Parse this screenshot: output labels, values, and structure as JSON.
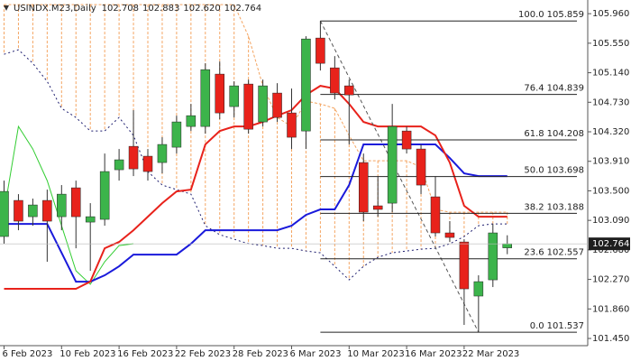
{
  "chart_data": {
    "type": "candlestick",
    "title": "USINDX.M23,Daily",
    "header_values": [
      "102.708",
      "102.883",
      "102.620",
      "102.764"
    ],
    "categories": [
      "6 Feb 2023",
      null,
      null,
      null,
      "10 Feb 2023",
      null,
      null,
      null,
      "16 Feb 2023",
      null,
      null,
      null,
      "22 Feb 2023",
      null,
      null,
      null,
      "28 Feb 2023",
      null,
      null,
      null,
      "6 Mar 2023",
      null,
      null,
      null,
      "10 Mar 2023",
      null,
      null,
      null,
      "16 Mar 2023",
      null,
      null,
      null,
      "22 Mar 2023",
      null,
      null,
      null
    ],
    "open": [
      102.866,
      103.367,
      103.141,
      103.367,
      103.141,
      103.542,
      103.066,
      103.104,
      103.793,
      104.118,
      103.981,
      103.893,
      104.106,
      104.394,
      104.394,
      105.121,
      104.67,
      104.983,
      104.457,
      104.858,
      104.582,
      104.331,
      105.622,
      105.208,
      104.958,
      103.893,
      103.292,
      103.329,
      104.331,
      104.081,
      103.417,
      102.916,
      102.79,
      102.039,
      102.264,
      102.708
    ],
    "high": [
      103.642,
      103.454,
      103.392,
      103.517,
      103.58,
      103.642,
      103.329,
      104.018,
      104.081,
      104.62,
      104.081,
      104.244,
      104.544,
      104.707,
      105.271,
      105.296,
      105.02,
      105.045,
      105.045,
      104.995,
      104.92,
      105.647,
      105.859,
      105.371,
      105.045,
      104.018,
      103.705,
      104.707,
      104.394,
      104.144,
      103.705,
      103.079,
      102.828,
      102.327,
      103.041,
      102.883
    ],
    "low": [
      102.765,
      102.953,
      103.016,
      102.515,
      102.953,
      102.702,
      102.39,
      103.016,
      103.642,
      103.705,
      103.642,
      103.743,
      104.018,
      104.331,
      104.294,
      104.494,
      104.519,
      104.294,
      104.394,
      104.457,
      104.081,
      104.081,
      105.171,
      104.77,
      104.144,
      103.079,
      103.141,
      103.204,
      104.018,
      103.454,
      102.866,
      102.79,
      101.638,
      101.537,
      102.164,
      102.62
    ],
    "close": [
      103.492,
      103.079,
      103.304,
      103.079,
      103.454,
      103.141,
      103.141,
      103.768,
      103.931,
      103.805,
      103.768,
      104.144,
      104.457,
      104.544,
      105.183,
      104.582,
      104.958,
      104.356,
      104.958,
      104.519,
      104.244,
      105.609,
      105.271,
      104.858,
      104.832,
      103.204,
      103.242,
      104.394,
      104.081,
      103.58,
      102.916,
      102.853,
      102.139,
      102.239,
      102.916,
      102.764
    ],
    "up_color": "#3cb44b",
    "down_color": "#e8221b",
    "series": [
      {
        "color": "#f4a460",
        "style": "cloud",
        "values": [
          106.085,
          106.085,
          106.085,
          106.085,
          106.085,
          106.085,
          106.085,
          106.085,
          106.085,
          106.085,
          106.085,
          106.085,
          106.085,
          106.085,
          106.085,
          106.085,
          106.085,
          105.647,
          104.958,
          104.519,
          104.394,
          104.745,
          104.707,
          104.645,
          104.269,
          103.918,
          103.918,
          103.918,
          103.918,
          103.83,
          103.242,
          103.204,
          103.204,
          103.204,
          103.204,
          103.204
        ]
      },
      {
        "color": "#1c1c6e",
        "style": "dashed",
        "values": [
          105.396,
          105.459,
          105.271,
          105.02,
          104.645,
          104.519,
          104.331,
          104.331,
          104.519,
          104.269,
          103.768,
          103.58,
          103.517,
          103.454,
          103.016,
          102.891,
          102.828,
          102.765,
          102.74,
          102.702,
          102.702,
          102.665,
          102.64,
          102.452,
          102.264,
          102.452,
          102.577,
          102.64,
          102.665,
          102.69,
          102.702,
          102.765,
          102.866,
          103.016,
          103.041,
          103.041
        ]
      },
      {
        "color": "#32cd32",
        "style": "solid",
        "values": [
          103.204,
          104.394,
          104.081,
          103.642,
          103.016,
          102.39,
          102.202,
          102.515,
          102.74,
          102.765,
          null,
          null,
          null,
          null,
          null,
          null,
          null,
          null,
          null,
          null,
          null,
          null,
          null,
          null,
          null,
          null,
          null,
          null,
          null,
          null,
          null,
          null,
          null,
          null,
          null,
          null
        ]
      },
      {
        "color": "#1a1adb",
        "style": "thick",
        "values": [
          103.041,
          103.041,
          103.041,
          103.041,
          102.64,
          102.239,
          102.239,
          102.327,
          102.452,
          102.615,
          102.615,
          102.615,
          102.615,
          102.765,
          102.953,
          102.953,
          102.953,
          102.953,
          102.953,
          102.953,
          103.016,
          103.166,
          103.242,
          103.242,
          103.58,
          104.144,
          104.144,
          104.144,
          104.144,
          104.144,
          104.144,
          103.956,
          103.743,
          103.705,
          103.705,
          103.705
        ]
      },
      {
        "color": "#e8221b",
        "style": "thick",
        "values": [
          102.139,
          102.139,
          102.139,
          102.139,
          102.139,
          102.139,
          102.239,
          102.702,
          102.79,
          102.953,
          103.141,
          103.329,
          103.492,
          103.517,
          104.144,
          104.331,
          104.394,
          104.394,
          104.457,
          104.544,
          104.62,
          104.832,
          104.958,
          104.92,
          104.707,
          104.457,
          104.394,
          104.394,
          104.394,
          104.394,
          104.269,
          103.893,
          103.292,
          103.141,
          103.141,
          103.141
        ]
      }
    ],
    "fibonacci": [
      {
        "level": "100.0",
        "price": 105.859
      },
      {
        "level": "76.4",
        "price": 104.839
      },
      {
        "level": "61.8",
        "price": 104.208
      },
      {
        "level": "50.0",
        "price": 103.698
      },
      {
        "level": "38.2",
        "price": 103.188
      },
      {
        "level": "23.6",
        "price": 102.557
      },
      {
        "level": "0.0",
        "price": 101.537
      }
    ],
    "ylim": [
      101.35,
      106.15
    ],
    "yticks": [
      {
        "value": 105.96,
        "label": "105.960"
      },
      {
        "value": 105.55,
        "label": "105.550"
      },
      {
        "value": 105.14,
        "label": "105.140"
      },
      {
        "value": 104.73,
        "label": "104.730"
      },
      {
        "value": 104.32,
        "label": "104.320"
      },
      {
        "value": 103.91,
        "label": "103.910"
      },
      {
        "value": 103.5,
        "label": "103.500"
      },
      {
        "value": 103.09,
        "label": "103.090"
      },
      {
        "value": 102.68,
        "label": "102.680"
      },
      {
        "value": 102.27,
        "label": "102.270"
      },
      {
        "value": 101.86,
        "label": "101.860"
      },
      {
        "value": 101.45,
        "label": "101.450"
      }
    ]
  }
}
